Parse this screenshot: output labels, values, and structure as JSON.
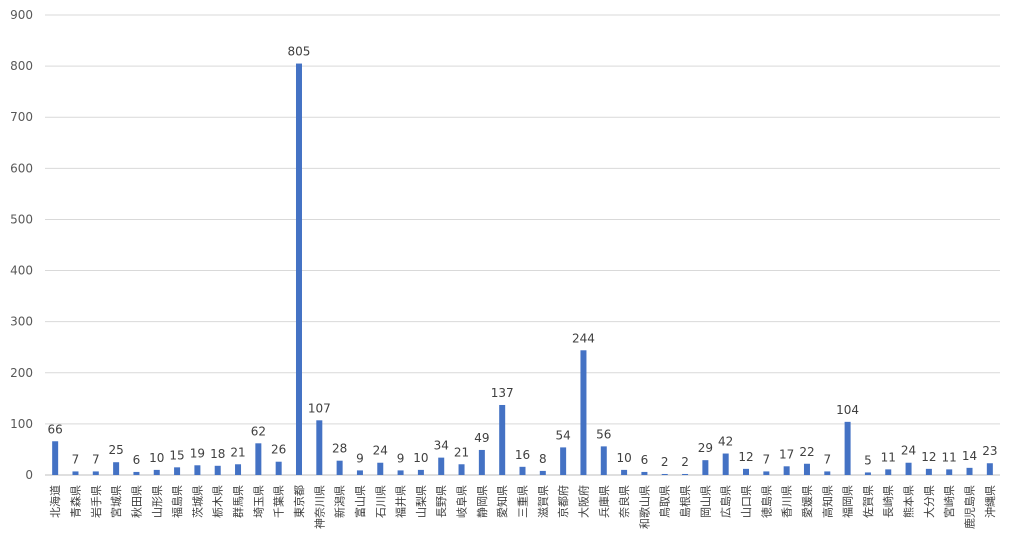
{
  "chart_data": {
    "type": "bar",
    "title": "",
    "xlabel": "",
    "ylabel": "",
    "ylim": [
      0,
      900
    ],
    "yticks": [
      0,
      100,
      200,
      300,
      400,
      500,
      600,
      700,
      800,
      900
    ],
    "grid": true,
    "legend": "none",
    "bar_color": "#4472c4",
    "categories": [
      "北海道",
      "青森県",
      "岩手県",
      "宮城県",
      "秋田県",
      "山形県",
      "福島県",
      "茨城県",
      "栃木県",
      "群馬県",
      "埼玉県",
      "千葉県",
      "東京都",
      "神奈川県",
      "新潟県",
      "富山県",
      "石川県",
      "福井県",
      "山梨県",
      "長野県",
      "岐阜県",
      "静岡県",
      "愛知県",
      "三重県",
      "滋賀県",
      "京都府",
      "大阪府",
      "兵庫県",
      "奈良県",
      "和歌山県",
      "鳥取県",
      "島根県",
      "岡山県",
      "広島県",
      "山口県",
      "徳島県",
      "香川県",
      "愛媛県",
      "高知県",
      "福岡県",
      "佐賀県",
      "長崎県",
      "熊本県",
      "大分県",
      "宮崎県",
      "鹿児島県",
      "沖縄県"
    ],
    "values": [
      66,
      7,
      7,
      25,
      6,
      10,
      15,
      19,
      18,
      21,
      62,
      26,
      805,
      107,
      28,
      9,
      24,
      9,
      10,
      34,
      21,
      49,
      137,
      16,
      8,
      54,
      244,
      56,
      10,
      6,
      2,
      2,
      29,
      42,
      12,
      7,
      17,
      22,
      7,
      104,
      5,
      11,
      24,
      12,
      11,
      14,
      23
    ]
  }
}
